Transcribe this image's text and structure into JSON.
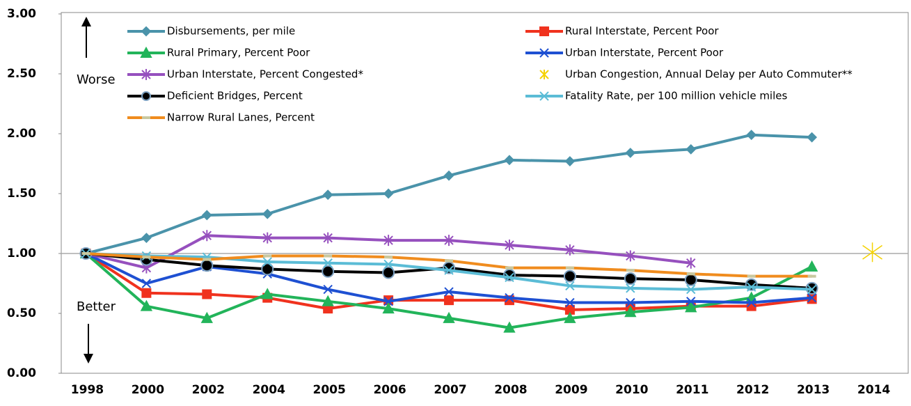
{
  "chart_data": {
    "type": "line",
    "categories": [
      "1998",
      "2000",
      "2002",
      "2004",
      "2005",
      "2006",
      "2007",
      "2008",
      "2009",
      "2010",
      "2011",
      "2012",
      "2013",
      "2014"
    ],
    "ylim": [
      0,
      3
    ],
    "yticks": [
      {
        "value": 0,
        "label": "0.00"
      },
      {
        "value": 0.5,
        "label": "0.50"
      },
      {
        "value": 1,
        "label": "1.00"
      },
      {
        "value": 1.5,
        "label": "1.50"
      },
      {
        "value": 2,
        "label": "2.00"
      },
      {
        "value": 2.5,
        "label": "2.50"
      },
      {
        "value": 3,
        "label": "3.00"
      }
    ],
    "reference_line": 1,
    "annotations": [
      "Worse",
      "Better"
    ],
    "series": [
      {
        "name": "Disbursements, per mile",
        "color": "#4a93aa",
        "marker": "diamond",
        "values": [
          1.0,
          1.13,
          1.32,
          1.33,
          1.49,
          1.5,
          1.65,
          1.78,
          1.77,
          1.84,
          1.87,
          1.99,
          1.97,
          null
        ]
      },
      {
        "name": "Rural Interstate, Percent Poor",
        "color": "#f0321e",
        "marker": "square",
        "values": [
          1.0,
          0.67,
          0.66,
          0.63,
          0.54,
          0.61,
          0.61,
          0.61,
          0.53,
          0.54,
          0.56,
          0.56,
          0.62,
          null
        ]
      },
      {
        "name": "Rural Primary, Percent Poor",
        "color": "#22b45a",
        "marker": "triangle",
        "values": [
          1.0,
          0.56,
          0.46,
          0.66,
          0.6,
          0.54,
          0.46,
          0.38,
          0.46,
          0.51,
          0.55,
          0.63,
          0.89,
          null
        ]
      },
      {
        "name": "Urban Interstate, Percent Poor",
        "color": "#1e50d2",
        "marker": "x",
        "values": [
          1.0,
          0.75,
          0.89,
          0.83,
          0.7,
          0.6,
          0.68,
          0.63,
          0.59,
          0.59,
          0.6,
          0.59,
          0.63,
          null
        ]
      },
      {
        "name": "Urban Interstate, Percent Congested*",
        "color": "#9650be",
        "marker": "star",
        "values": [
          1.0,
          0.88,
          1.15,
          1.13,
          1.13,
          1.11,
          1.11,
          1.07,
          1.03,
          0.98,
          0.92,
          null,
          null,
          null
        ]
      },
      {
        "name": "Urban Congestion, Annual Delay per Auto Commuter**",
        "color": "#f5d200",
        "marker": "star",
        "line": false,
        "values": [
          null,
          null,
          null,
          null,
          null,
          null,
          null,
          null,
          null,
          null,
          null,
          null,
          null,
          1.01
        ]
      },
      {
        "name": "Deficient Bridges, Percent",
        "color": "#000000",
        "marker": "circle",
        "values": [
          1.0,
          0.95,
          0.9,
          0.87,
          0.85,
          0.84,
          0.88,
          0.82,
          0.81,
          0.79,
          0.78,
          0.74,
          0.71,
          null
        ]
      },
      {
        "name": "Fatality Rate, per 100 million vehicle miles",
        "color": "#5bbcd6",
        "marker": "x",
        "values": [
          1.0,
          0.98,
          0.97,
          0.93,
          0.92,
          0.91,
          0.86,
          0.8,
          0.73,
          0.71,
          0.7,
          0.72,
          0.7,
          null
        ]
      },
      {
        "name": "Narrow Rural Lanes, Percent",
        "color": "#f08c1e",
        "marker": "dash",
        "values": [
          1.0,
          0.97,
          0.95,
          0.98,
          0.98,
          0.97,
          0.94,
          0.88,
          0.88,
          0.86,
          0.83,
          0.81,
          0.81,
          null
        ]
      }
    ]
  }
}
